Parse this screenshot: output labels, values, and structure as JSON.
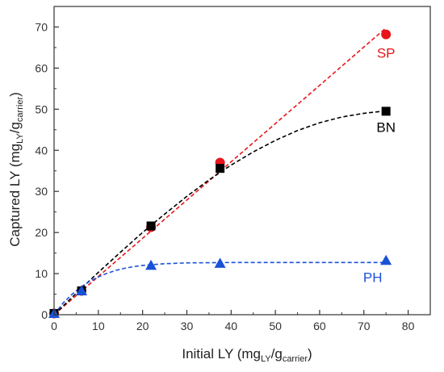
{
  "chart_data": {
    "type": "scatter",
    "title": "",
    "xlabel": {
      "main": "Initial LY (mg",
      "sub1": "LY",
      "mid": "/g",
      "sub2": "carrier",
      "end": ")"
    },
    "ylabel": {
      "main": "Captured LY (mg",
      "sub1": "LY",
      "mid": "/g",
      "sub2": "carrier",
      "end": ")"
    },
    "xlim": [
      0,
      85
    ],
    "ylim": [
      0,
      75
    ],
    "xticks": [
      0,
      10,
      20,
      30,
      40,
      50,
      60,
      70,
      80
    ],
    "yticks": [
      0,
      10,
      20,
      30,
      40,
      50,
      60,
      70
    ],
    "grid": false,
    "series": [
      {
        "name": "SP",
        "color": "#e8161b",
        "marker": "circle",
        "x": [
          0,
          6.2,
          21.9,
          37.5,
          75
        ],
        "y": [
          0.3,
          5.8,
          21.3,
          37.0,
          68.2
        ],
        "fit": [
          [
            0,
            0
          ],
          [
            20,
            18.6
          ],
          [
            40,
            37.2
          ],
          [
            60,
            55.8
          ],
          [
            75,
            69.8
          ]
        ],
        "label_at": [
          75,
          62.5
        ]
      },
      {
        "name": "BN",
        "color": "#000000",
        "marker": "square",
        "x": [
          0,
          6.2,
          21.9,
          37.5,
          75
        ],
        "y": [
          0.3,
          5.8,
          21.6,
          35.6,
          49.5
        ],
        "fit": [
          [
            0,
            0
          ],
          [
            5,
            5.2
          ],
          [
            10,
            10.3
          ],
          [
            15,
            15.2
          ],
          [
            20,
            20.0
          ],
          [
            25,
            24.5
          ],
          [
            30,
            28.8
          ],
          [
            35,
            32.8
          ],
          [
            40,
            36.4
          ],
          [
            45,
            39.6
          ],
          [
            50,
            42.4
          ],
          [
            55,
            44.8
          ],
          [
            60,
            46.7
          ],
          [
            65,
            48.1
          ],
          [
            70,
            49.0
          ],
          [
            75,
            49.6
          ]
        ],
        "label_at": [
          75,
          44.5
        ]
      },
      {
        "name": "PH",
        "color": "#1a52d6",
        "marker": "triangle",
        "x": [
          0,
          6.2,
          21.9,
          37.5,
          75
        ],
        "y": [
          0.3,
          5.8,
          12.0,
          12.5,
          13.2
        ],
        "fit": [
          [
            0,
            0
          ],
          [
            2,
            2.8
          ],
          [
            4,
            4.9
          ],
          [
            6,
            6.7
          ],
          [
            8,
            8.1
          ],
          [
            10,
            9.2
          ],
          [
            12,
            10.1
          ],
          [
            14,
            10.8
          ],
          [
            16,
            11.3
          ],
          [
            18,
            11.7
          ],
          [
            20,
            12.0
          ],
          [
            25,
            12.4
          ],
          [
            30,
            12.6
          ],
          [
            40,
            12.7
          ],
          [
            50,
            12.7
          ],
          [
            60,
            12.7
          ],
          [
            75,
            12.7
          ]
        ],
        "label_at": [
          72,
          8.0
        ]
      }
    ]
  }
}
